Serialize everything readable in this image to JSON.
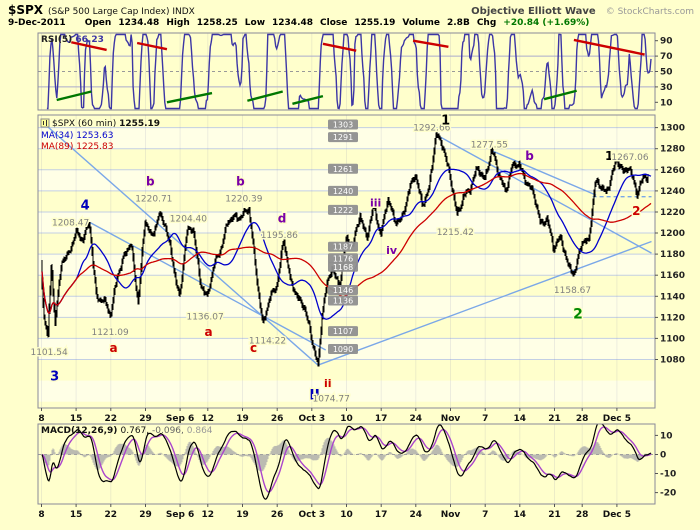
{
  "header": {
    "symbol": "$SPX",
    "name": "(S&P 500 Large Cap Index) INDX",
    "source_note": "Objective Elliott Wave",
    "copyright": "© StockCharts.com",
    "date": "9-Dec-2011",
    "quote": {
      "open_label": "Open",
      "open": "1234.48",
      "high_label": "High",
      "high": "1258.25",
      "low_label": "Low",
      "low": "1234.48",
      "close_label": "Close",
      "close": "1255.19",
      "volume_label": "Volume",
      "volume": "2.8B",
      "chg_label": "Chg",
      "chg": "+20.84 (+1.69%)"
    }
  },
  "colors": {
    "bg": "#FFFFCC",
    "panel_border": "#888899",
    "grid_h": "#b9c7e6",
    "band": "#ffffff",
    "rsi_line": "#3c36a5",
    "bars": "#000000",
    "trend": "#7aa7e8",
    "diverg_red": "#cc0000",
    "diverg_green": "#007700",
    "pivot_bg": "#8f8f8f",
    "pivot_text": "#ffffff",
    "macd_line": "#000000",
    "macd_signal": "#aa44cc",
    "macd_hist": "#aaaaaa",
    "anno_gray": "#808080",
    "blue": "#0000bb",
    "red": "#cc0000",
    "purple": "#7a00a8",
    "green": "#008800",
    "black": "#000000",
    "axis_text": "#222222",
    "chg_green": "#007700"
  },
  "chart_data": [
    {
      "id": "rsi",
      "type": "line",
      "title": "RSI(5)",
      "value": "66.23",
      "period": 5,
      "ylim": [
        0,
        100
      ],
      "yticks": [
        10,
        30,
        50,
        70,
        90
      ],
      "hlines": [
        {
          "y": 70
        },
        {
          "y": 50,
          "dash": true
        },
        {
          "y": 30
        }
      ],
      "divergence": {
        "red": [
          [
            [
              4.3,
              88
            ],
            [
              9.4,
              78
            ]
          ],
          [
            [
              13.8,
              87
            ],
            [
              18.1,
              79
            ]
          ],
          [
            [
              40.6,
              86
            ],
            [
              45.4,
              77
            ]
          ],
          [
            [
              53.6,
              90
            ],
            [
              58.7,
              82
            ]
          ],
          [
            [
              76.8,
              91
            ],
            [
              87,
              72
            ]
          ]
        ],
        "green": [
          [
            [
              2.2,
              13
            ],
            [
              7.2,
              24
            ]
          ],
          [
            [
              18.1,
              10
            ],
            [
              24.6,
              22
            ]
          ],
          [
            [
              29.7,
              12
            ],
            [
              34.8,
              24
            ]
          ],
          [
            [
              36.2,
              8
            ],
            [
              40.6,
              18
            ]
          ],
          [
            [
              72.5,
              14
            ],
            [
              77.2,
              25
            ]
          ]
        ]
      }
    },
    {
      "id": "price",
      "type": "ohlc",
      "title": "$SPX (60 min)",
      "value": "1255.19",
      "ma": [
        {
          "label": "MA(34)",
          "value": "1253.63",
          "period": 34,
          "color": "#0000cc"
        },
        {
          "label": "MA(89)",
          "value": "1225.83",
          "period": 89,
          "color": "#cc0000"
        }
      ],
      "ylim": [
        1034,
        1312
      ],
      "yticks": [
        1080,
        1100,
        1120,
        1140,
        1160,
        1180,
        1200,
        1220,
        1240,
        1260,
        1280,
        1300
      ],
      "days": 88,
      "hours_per_day": 7,
      "swings": [
        [
          0,
          1170
        ],
        [
          0.4,
          1119
        ],
        [
          1,
          1101.54
        ],
        [
          1.5,
          1172
        ],
        [
          2,
          1118
        ],
        [
          3,
          1172
        ],
        [
          4,
          1178
        ],
        [
          5,
          1204
        ],
        [
          6,
          1192
        ],
        [
          7,
          1208.47
        ],
        [
          8,
          1141
        ],
        [
          9,
          1135
        ],
        [
          10,
          1121.09
        ],
        [
          11,
          1162
        ],
        [
          13,
          1190
        ],
        [
          14,
          1136
        ],
        [
          15,
          1210
        ],
        [
          16,
          1195
        ],
        [
          17,
          1220.71
        ],
        [
          18,
          1204
        ],
        [
          19,
          1173
        ],
        [
          20,
          1140
        ],
        [
          21,
          1198
        ],
        [
          22,
          1204.4
        ],
        [
          23,
          1154
        ],
        [
          24,
          1136.07
        ],
        [
          25,
          1172
        ],
        [
          26,
          1188
        ],
        [
          27,
          1209
        ],
        [
          28,
          1216
        ],
        [
          30,
          1220.39
        ],
        [
          31,
          1166
        ],
        [
          32,
          1114.22
        ],
        [
          33,
          1136
        ],
        [
          34,
          1151
        ],
        [
          35,
          1195.86
        ],
        [
          36,
          1151
        ],
        [
          38,
          1131
        ],
        [
          39,
          1098
        ],
        [
          40,
          1074.77
        ],
        [
          40.5,
          1123
        ],
        [
          41,
          1144
        ],
        [
          42,
          1165
        ],
        [
          43,
          1150
        ],
        [
          44,
          1194
        ],
        [
          45,
          1186
        ],
        [
          46,
          1220
        ],
        [
          47,
          1195
        ],
        [
          48,
          1224
        ],
        [
          49,
          1200
        ],
        [
          50,
          1233
        ],
        [
          51,
          1209
        ],
        [
          52,
          1215
        ],
        [
          53,
          1238
        ],
        [
          54,
          1254
        ],
        [
          55,
          1229
        ],
        [
          56,
          1242
        ],
        [
          57,
          1292.66
        ],
        [
          58,
          1285
        ],
        [
          59,
          1253
        ],
        [
          60,
          1215.42
        ],
        [
          61,
          1238
        ],
        [
          62,
          1242
        ],
        [
          63,
          1261
        ],
        [
          64,
          1253
        ],
        [
          65,
          1277.55
        ],
        [
          66,
          1256
        ],
        [
          67,
          1242
        ],
        [
          68,
          1262
        ],
        [
          69,
          1264
        ],
        [
          70,
          1251
        ],
        [
          71,
          1237
        ],
        [
          72,
          1209
        ],
        [
          73,
          1216
        ],
        [
          74,
          1183
        ],
        [
          75,
          1196
        ],
        [
          76,
          1172
        ],
        [
          77,
          1158.67
        ],
        [
          78,
          1192
        ],
        [
          79,
          1195
        ],
        [
          80,
          1247
        ],
        [
          81.5,
          1240
        ],
        [
          83,
          1267.06
        ],
        [
          84,
          1258
        ],
        [
          84.8,
          1266
        ],
        [
          86,
          1234.48
        ],
        [
          87,
          1255.19
        ]
      ],
      "pivot_levels": [
        1303,
        1291,
        1261,
        1240,
        1222,
        1187,
        1176,
        1168,
        1146,
        1136,
        1107,
        1090
      ],
      "pivot_label_day": 43.5,
      "trendlines": [
        {
          "pts": [
            [
              0,
              1306
            ],
            [
              40,
              1074
            ]
          ]
        },
        {
          "pts": [
            [
              7,
              1210
            ],
            [
              41,
              1089
            ]
          ]
        },
        {
          "pts": [
            [
              57,
              1293
            ],
            [
              88,
              1181
            ]
          ]
        },
        {
          "pts": [
            [
              65,
              1278
            ],
            [
              80,
              1236
            ]
          ]
        },
        {
          "pts": [
            [
              40,
              1075
            ],
            [
              88,
              1192
            ]
          ]
        },
        {
          "pts": [
            [
              79.5,
              1234.48
            ],
            [
              88,
              1234.48
            ]
          ],
          "dash": true
        }
      ],
      "annotations": [
        {
          "d": 1.1,
          "p": 1087,
          "t": "1101.54",
          "c": "gray"
        },
        {
          "d": 1.9,
          "p": 1063,
          "t": "3",
          "c": "blue",
          "s": 13,
          "b": 1
        },
        {
          "d": 4.2,
          "p": 1210,
          "t": "1208.47",
          "c": "gray"
        },
        {
          "d": 6.3,
          "p": 1225,
          "t": "4",
          "c": "blue",
          "s": 13,
          "b": 1
        },
        {
          "d": 9.9,
          "p": 1106,
          "t": "1121.09",
          "c": "gray"
        },
        {
          "d": 10.4,
          "p": 1090,
          "t": "a",
          "c": "red",
          "s": 12,
          "b": 1
        },
        {
          "d": 16.2,
          "p": 1233,
          "t": "1220.71",
          "c": "gray"
        },
        {
          "d": 15.7,
          "p": 1248,
          "t": "b",
          "c": "purple",
          "s": 12,
          "b": 1
        },
        {
          "d": 21.2,
          "p": 1214,
          "t": "1204.40",
          "c": "gray"
        },
        {
          "d": 23.6,
          "p": 1121,
          "t": "1136.07",
          "c": "gray"
        },
        {
          "d": 24.1,
          "p": 1105,
          "t": "a",
          "c": "red",
          "s": 12,
          "b": 1
        },
        {
          "d": 29.2,
          "p": 1233,
          "t": "1220.39",
          "c": "gray"
        },
        {
          "d": 28.7,
          "p": 1248,
          "t": "b",
          "c": "purple",
          "s": 12,
          "b": 1
        },
        {
          "d": 30.6,
          "p": 1090,
          "t": "c",
          "c": "red",
          "s": 12,
          "b": 1
        },
        {
          "d": 32.6,
          "p": 1098,
          "t": "1114.22",
          "c": "gray"
        },
        {
          "d": 34.7,
          "p": 1213,
          "t": "d",
          "c": "purple",
          "s": 12,
          "b": 1
        },
        {
          "d": 34.3,
          "p": 1198,
          "t": "1195.86",
          "c": "gray"
        },
        {
          "d": 41.3,
          "p": 1057,
          "t": "ii",
          "c": "red",
          "s": 11,
          "b": 1
        },
        {
          "d": 39.4,
          "p": 1045,
          "t": "II",
          "c": "blue",
          "s": 14,
          "b": 1
        },
        {
          "d": 41.8,
          "p": 1043,
          "t": "1074.77",
          "c": "gray"
        },
        {
          "d": 48.2,
          "p": 1228,
          "t": "iii",
          "c": "purple",
          "s": 11,
          "b": 1
        },
        {
          "d": 50.5,
          "p": 1183,
          "t": "iv",
          "c": "purple",
          "s": 11,
          "b": 1
        },
        {
          "d": 56.3,
          "p": 1300,
          "t": "1292.66",
          "c": "gray"
        },
        {
          "d": 58.3,
          "p": 1306,
          "t": "1",
          "c": "black",
          "s": 13,
          "b": 1
        },
        {
          "d": 59.7,
          "p": 1201,
          "t": "1215.42",
          "c": "gray"
        },
        {
          "d": 64.6,
          "p": 1284,
          "t": "1277.55",
          "c": "gray"
        },
        {
          "d": 70.4,
          "p": 1272,
          "t": "b",
          "c": "purple",
          "s": 12,
          "b": 1
        },
        {
          "d": 76.6,
          "p": 1146,
          "t": "1158.67",
          "c": "gray"
        },
        {
          "d": 77.4,
          "p": 1122,
          "t": "2",
          "c": "green",
          "s": 14,
          "b": 1
        },
        {
          "d": 81.9,
          "p": 1272,
          "t": "1",
          "c": "black",
          "s": 12,
          "b": 1
        },
        {
          "d": 84.9,
          "p": 1272,
          "t": "1267.06",
          "c": "gray"
        },
        {
          "d": 85.8,
          "p": 1220,
          "t": "2",
          "c": "red",
          "s": 12,
          "b": 1
        }
      ],
      "xticks": [
        {
          "d": 0,
          "l": "8"
        },
        {
          "d": 5,
          "l": "15"
        },
        {
          "d": 10,
          "l": "22"
        },
        {
          "d": 15,
          "l": "29"
        },
        {
          "d": 20,
          "l": "Sep 6"
        },
        {
          "d": 24,
          "l": "12"
        },
        {
          "d": 29,
          "l": "19"
        },
        {
          "d": 34,
          "l": "26"
        },
        {
          "d": 39,
          "l": "Oct 3"
        },
        {
          "d": 44,
          "l": "10"
        },
        {
          "d": 49,
          "l": "17"
        },
        {
          "d": 54,
          "l": "24"
        },
        {
          "d": 59,
          "l": "Nov"
        },
        {
          "d": 64,
          "l": "7"
        },
        {
          "d": 69,
          "l": "14"
        },
        {
          "d": 74,
          "l": "21"
        },
        {
          "d": 78,
          "l": "28"
        },
        {
          "d": 83,
          "l": "Dec 5"
        }
      ]
    },
    {
      "id": "macd",
      "type": "macd",
      "title": "MACD(12,26,9)",
      "values": [
        "0.767,",
        "-0.096,",
        "0.864"
      ],
      "params": [
        12,
        26,
        9
      ],
      "ylim": [
        -26,
        16
      ],
      "yticks": [
        -20,
        -10,
        0,
        10
      ]
    }
  ]
}
